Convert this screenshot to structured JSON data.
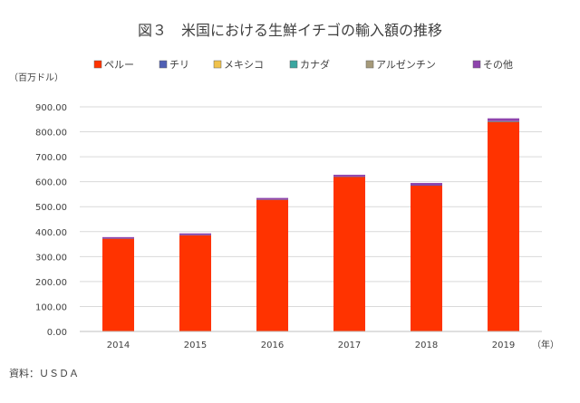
{
  "chart_data": {
    "type": "bar",
    "stacked": true,
    "title": "図３　米国における生鮮イチゴの輸入額の推移",
    "ylabel": "（百万ドル）",
    "xlabel": "（年）",
    "source": "資料：ＵＳＤＡ",
    "categories": [
      "2014",
      "2015",
      "2016",
      "2017",
      "2018",
      "2019"
    ],
    "ylim": [
      0,
      900
    ],
    "yticks": [
      "0.00",
      "100.00",
      "200.00",
      "300.00",
      "400.00",
      "500.00",
      "600.00",
      "700.00",
      "800.00",
      "900.00"
    ],
    "yticks_values": [
      0,
      100,
      200,
      300,
      400,
      500,
      600,
      700,
      800,
      900
    ],
    "grid": true,
    "legend_position": "top",
    "series": [
      {
        "name": "ペルー",
        "color": "#ff3300",
        "values": [
          372,
          386,
          528,
          620,
          585,
          840
        ]
      },
      {
        "name": "チリ",
        "color": "#4f5fb4",
        "values": [
          1,
          1,
          1,
          1,
          1,
          1
        ]
      },
      {
        "name": "メキシコ",
        "color": "#f0c24b",
        "values": [
          0,
          0,
          0,
          0,
          0,
          0
        ]
      },
      {
        "name": "カナダ",
        "color": "#3aa6a0",
        "values": [
          0,
          0,
          0,
          0,
          0,
          1
        ]
      },
      {
        "name": "アルゼンチン",
        "color": "#a69a7a",
        "values": [
          0,
          0,
          0,
          0,
          0,
          1
        ]
      },
      {
        "name": "その他",
        "color": "#8e44ad",
        "values": [
          5,
          6,
          6,
          7,
          9,
          11
        ]
      }
    ]
  }
}
